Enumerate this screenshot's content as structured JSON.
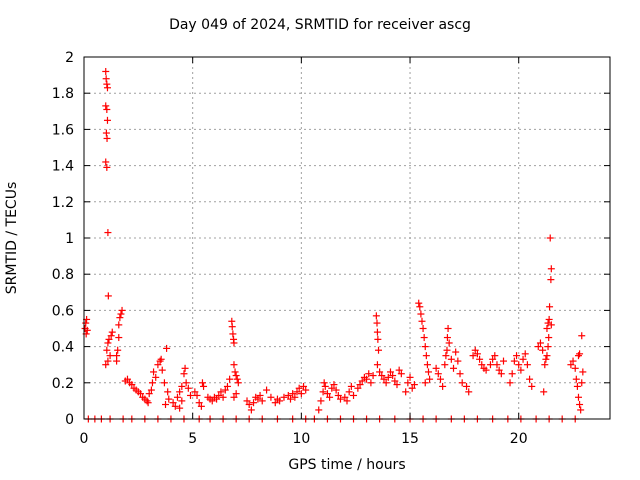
{
  "chart_data": {
    "type": "scatter",
    "title": "Day 049 of 2024, SRMTID for receiver ascg",
    "xlabel": "GPS time / hours",
    "ylabel": "SRMTID / TECUs",
    "xlim": [
      0,
      24.2
    ],
    "ylim": [
      0,
      2
    ],
    "xticks": [
      0,
      5,
      10,
      15,
      20
    ],
    "yticks": [
      0,
      0.2,
      0.4,
      0.6,
      0.8,
      1,
      1.2,
      1.4,
      1.6,
      1.8,
      2
    ],
    "grid": true,
    "marker": "+",
    "color": "#ff0000",
    "series": [
      {
        "name": "SRMTID",
        "points": [
          [
            0.05,
            0.5
          ],
          [
            0.08,
            0.53
          ],
          [
            0.1,
            0.47
          ],
          [
            0.12,
            0.55
          ],
          [
            0.15,
            0.49
          ],
          [
            1.0,
            1.92
          ],
          [
            1.02,
            1.88
          ],
          [
            1.05,
            1.85
          ],
          [
            1.08,
            1.83
          ],
          [
            1.0,
            1.73
          ],
          [
            1.05,
            1.71
          ],
          [
            1.08,
            1.65
          ],
          [
            1.03,
            1.58
          ],
          [
            1.06,
            1.55
          ],
          [
            1.0,
            1.42
          ],
          [
            1.05,
            1.39
          ],
          [
            1.1,
            1.03
          ],
          [
            1.12,
            0.68
          ],
          [
            1.05,
            0.38
          ],
          [
            1.1,
            0.42
          ],
          [
            1.15,
            0.44
          ],
          [
            1.2,
            0.35
          ],
          [
            1.25,
            0.46
          ],
          [
            1.1,
            0.32
          ],
          [
            1.3,
            0.48
          ],
          [
            1.0,
            0.3
          ],
          [
            1.5,
            0.35
          ],
          [
            1.55,
            0.38
          ],
          [
            1.6,
            0.52
          ],
          [
            1.65,
            0.56
          ],
          [
            1.7,
            0.58
          ],
          [
            1.75,
            0.6
          ],
          [
            1.6,
            0.45
          ],
          [
            1.5,
            0.32
          ],
          [
            1.9,
            0.21
          ],
          [
            2.0,
            0.22
          ],
          [
            2.1,
            0.2
          ],
          [
            2.2,
            0.19
          ],
          [
            2.3,
            0.17
          ],
          [
            2.4,
            0.16
          ],
          [
            2.5,
            0.15
          ],
          [
            2.6,
            0.14
          ],
          [
            2.7,
            0.12
          ],
          [
            2.8,
            0.11
          ],
          [
            2.9,
            0.1
          ],
          [
            2.95,
            0.09
          ],
          [
            3.0,
            0.14
          ],
          [
            3.1,
            0.16
          ],
          [
            3.15,
            0.2
          ],
          [
            3.2,
            0.26
          ],
          [
            3.3,
            0.23
          ],
          [
            3.4,
            0.3
          ],
          [
            3.5,
            0.32
          ],
          [
            3.55,
            0.33
          ],
          [
            3.6,
            0.27
          ],
          [
            3.7,
            0.2
          ],
          [
            3.8,
            0.39
          ],
          [
            3.85,
            0.15
          ],
          [
            3.75,
            0.08
          ],
          [
            3.9,
            0.11
          ],
          [
            4.1,
            0.09
          ],
          [
            4.2,
            0.07
          ],
          [
            4.3,
            0.12
          ],
          [
            4.4,
            0.15
          ],
          [
            4.5,
            0.18
          ],
          [
            4.6,
            0.25
          ],
          [
            4.65,
            0.28
          ],
          [
            4.7,
            0.2
          ],
          [
            4.8,
            0.17
          ],
          [
            4.9,
            0.13
          ],
          [
            4.5,
            0.1
          ],
          [
            4.4,
            0.06
          ],
          [
            5.1,
            0.15
          ],
          [
            5.2,
            0.13
          ],
          [
            5.3,
            0.09
          ],
          [
            5.4,
            0.07
          ],
          [
            5.45,
            0.2
          ],
          [
            5.5,
            0.18
          ],
          [
            5.7,
            0.12
          ],
          [
            5.8,
            0.11
          ],
          [
            5.9,
            0.1
          ],
          [
            6.0,
            0.12
          ],
          [
            6.1,
            0.11
          ],
          [
            6.2,
            0.13
          ],
          [
            6.3,
            0.15
          ],
          [
            6.4,
            0.12
          ],
          [
            6.5,
            0.16
          ],
          [
            6.6,
            0.18
          ],
          [
            6.7,
            0.22
          ],
          [
            6.8,
            0.54
          ],
          [
            6.82,
            0.51
          ],
          [
            6.85,
            0.47
          ],
          [
            6.88,
            0.44
          ],
          [
            6.9,
            0.42
          ],
          [
            6.9,
            0.3
          ],
          [
            6.95,
            0.26
          ],
          [
            7.0,
            0.24
          ],
          [
            7.05,
            0.22
          ],
          [
            7.1,
            0.2
          ],
          [
            7.0,
            0.14
          ],
          [
            6.9,
            0.12
          ],
          [
            7.5,
            0.1
          ],
          [
            7.6,
            0.08
          ],
          [
            7.7,
            0.05
          ],
          [
            7.8,
            0.09
          ],
          [
            7.9,
            0.12
          ],
          [
            8.0,
            0.11
          ],
          [
            8.1,
            0.13
          ],
          [
            8.2,
            0.1
          ],
          [
            8.4,
            0.16
          ],
          [
            8.6,
            0.12
          ],
          [
            8.8,
            0.09
          ],
          [
            8.9,
            0.11
          ],
          [
            9.0,
            0.1
          ],
          [
            9.2,
            0.12
          ],
          [
            9.4,
            0.13
          ],
          [
            9.5,
            0.11
          ],
          [
            9.6,
            0.14
          ],
          [
            9.7,
            0.12
          ],
          [
            9.8,
            0.15
          ],
          [
            9.9,
            0.17
          ],
          [
            10.0,
            0.14
          ],
          [
            10.1,
            0.18
          ],
          [
            10.2,
            0.16
          ],
          [
            10.8,
            0.05
          ],
          [
            10.9,
            0.1
          ],
          [
            11.0,
            0.15
          ],
          [
            11.05,
            0.2
          ],
          [
            11.1,
            0.18
          ],
          [
            11.2,
            0.14
          ],
          [
            11.3,
            0.12
          ],
          [
            11.4,
            0.17
          ],
          [
            11.5,
            0.19
          ],
          [
            11.6,
            0.16
          ],
          [
            11.7,
            0.13
          ],
          [
            11.8,
            0.11
          ],
          [
            12.0,
            0.12
          ],
          [
            12.1,
            0.1
          ],
          [
            12.2,
            0.15
          ],
          [
            12.3,
            0.18
          ],
          [
            12.4,
            0.13
          ],
          [
            12.6,
            0.17
          ],
          [
            12.7,
            0.19
          ],
          [
            12.8,
            0.21
          ],
          [
            12.9,
            0.23
          ],
          [
            13.0,
            0.22
          ],
          [
            13.1,
            0.25
          ],
          [
            13.2,
            0.2
          ],
          [
            13.3,
            0.24
          ],
          [
            13.45,
            0.57
          ],
          [
            13.48,
            0.53
          ],
          [
            13.5,
            0.48
          ],
          [
            13.52,
            0.44
          ],
          [
            13.55,
            0.38
          ],
          [
            13.5,
            0.3
          ],
          [
            13.6,
            0.26
          ],
          [
            13.7,
            0.24
          ],
          [
            13.8,
            0.22
          ],
          [
            13.9,
            0.2
          ],
          [
            14.0,
            0.23
          ],
          [
            14.1,
            0.26
          ],
          [
            14.2,
            0.24
          ],
          [
            14.3,
            0.21
          ],
          [
            14.4,
            0.19
          ],
          [
            14.5,
            0.27
          ],
          [
            14.6,
            0.25
          ],
          [
            14.8,
            0.15
          ],
          [
            14.9,
            0.2
          ],
          [
            15.0,
            0.23
          ],
          [
            15.1,
            0.17
          ],
          [
            15.2,
            0.19
          ],
          [
            15.4,
            0.64
          ],
          [
            15.45,
            0.62
          ],
          [
            15.5,
            0.58
          ],
          [
            15.55,
            0.54
          ],
          [
            15.6,
            0.5
          ],
          [
            15.65,
            0.45
          ],
          [
            15.7,
            0.4
          ],
          [
            15.75,
            0.35
          ],
          [
            15.8,
            0.3
          ],
          [
            15.85,
            0.26
          ],
          [
            15.9,
            0.22
          ],
          [
            15.7,
            0.2
          ],
          [
            16.2,
            0.28
          ],
          [
            16.3,
            0.25
          ],
          [
            16.4,
            0.22
          ],
          [
            16.5,
            0.18
          ],
          [
            16.6,
            0.3
          ],
          [
            16.65,
            0.35
          ],
          [
            16.7,
            0.38
          ],
          [
            16.72,
            0.45
          ],
          [
            16.75,
            0.5
          ],
          [
            16.8,
            0.42
          ],
          [
            16.9,
            0.33
          ],
          [
            17.0,
            0.28
          ],
          [
            17.1,
            0.37
          ],
          [
            17.2,
            0.32
          ],
          [
            17.3,
            0.25
          ],
          [
            17.4,
            0.2
          ],
          [
            17.6,
            0.18
          ],
          [
            17.7,
            0.15
          ],
          [
            17.9,
            0.35
          ],
          [
            18.0,
            0.38
          ],
          [
            18.1,
            0.36
          ],
          [
            18.2,
            0.33
          ],
          [
            18.3,
            0.3
          ],
          [
            18.4,
            0.28
          ],
          [
            18.5,
            0.27
          ],
          [
            18.7,
            0.3
          ],
          [
            18.8,
            0.33
          ],
          [
            18.9,
            0.35
          ],
          [
            19.0,
            0.3
          ],
          [
            19.1,
            0.27
          ],
          [
            19.2,
            0.25
          ],
          [
            19.3,
            0.32
          ],
          [
            19.6,
            0.2
          ],
          [
            19.7,
            0.25
          ],
          [
            19.8,
            0.32
          ],
          [
            19.9,
            0.35
          ],
          [
            20.0,
            0.3
          ],
          [
            20.1,
            0.27
          ],
          [
            20.2,
            0.33
          ],
          [
            20.3,
            0.36
          ],
          [
            20.4,
            0.3
          ],
          [
            20.5,
            0.22
          ],
          [
            20.6,
            0.18
          ],
          [
            20.9,
            0.4
          ],
          [
            21.0,
            0.42
          ],
          [
            21.1,
            0.38
          ],
          [
            21.15,
            0.15
          ],
          [
            21.2,
            0.3
          ],
          [
            21.25,
            0.33
          ],
          [
            21.3,
            0.35
          ],
          [
            21.35,
            0.4
          ],
          [
            21.3,
            0.5
          ],
          [
            21.35,
            0.53
          ],
          [
            21.45,
            1.0
          ],
          [
            21.5,
            0.83
          ],
          [
            21.48,
            0.77
          ],
          [
            21.42,
            0.62
          ],
          [
            21.4,
            0.55
          ],
          [
            21.38,
            0.45
          ],
          [
            21.5,
            0.52
          ],
          [
            22.4,
            0.3
          ],
          [
            22.5,
            0.32
          ],
          [
            22.6,
            0.28
          ],
          [
            22.65,
            0.22
          ],
          [
            22.7,
            0.18
          ],
          [
            22.75,
            0.12
          ],
          [
            22.8,
            0.08
          ],
          [
            22.85,
            0.05
          ],
          [
            22.9,
            0.2
          ],
          [
            22.95,
            0.26
          ],
          [
            22.8,
            0.36
          ],
          [
            22.9,
            0.46
          ],
          [
            22.75,
            0.35
          ],
          [
            0.2,
            0.0
          ],
          [
            0.5,
            0.0
          ],
          [
            0.8,
            0.0
          ],
          [
            1.2,
            0.0
          ],
          [
            1.8,
            0.0
          ],
          [
            2.2,
            0.0
          ],
          [
            2.8,
            0.0
          ],
          [
            3.4,
            0.0
          ],
          [
            4.0,
            0.0
          ],
          [
            4.6,
            0.0
          ],
          [
            5.3,
            0.0
          ],
          [
            5.8,
            0.0
          ],
          [
            6.4,
            0.0
          ],
          [
            7.0,
            0.0
          ],
          [
            7.6,
            0.0
          ],
          [
            8.2,
            0.0
          ],
          [
            8.9,
            0.0
          ],
          [
            9.6,
            0.0
          ],
          [
            10.2,
            0.0
          ],
          [
            10.6,
            0.0
          ],
          [
            11.2,
            0.0
          ],
          [
            11.8,
            0.0
          ],
          [
            12.4,
            0.0
          ],
          [
            13.0,
            0.0
          ],
          [
            13.6,
            0.0
          ],
          [
            14.3,
            0.0
          ],
          [
            15.0,
            0.0
          ],
          [
            15.6,
            0.0
          ],
          [
            16.2,
            0.0
          ],
          [
            16.9,
            0.0
          ],
          [
            17.5,
            0.0
          ],
          [
            18.1,
            0.0
          ],
          [
            18.8,
            0.0
          ],
          [
            19.5,
            0.0
          ],
          [
            20.1,
            0.0
          ],
          [
            20.8,
            0.0
          ],
          [
            21.4,
            0.0
          ],
          [
            22.0,
            0.0
          ],
          [
            22.6,
            0.0
          ]
        ]
      }
    ]
  }
}
